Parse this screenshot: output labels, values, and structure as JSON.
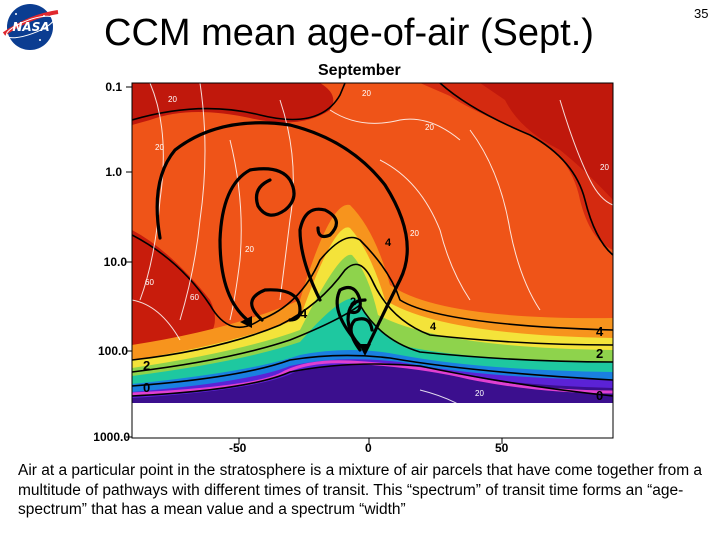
{
  "slide": {
    "title": "CCM mean age-of-air (Sept.)",
    "number": "35",
    "logo_text": "NASA",
    "logo_icon": "nasa-meatball-icon"
  },
  "plot": {
    "title": "September",
    "y_ticks": [
      "0.1",
      "1.0",
      "10.0",
      "100.0",
      "1000.0"
    ],
    "x_ticks": [
      "-50",
      "0",
      "50"
    ],
    "contour_labels_black": [
      "4",
      "2",
      "0",
      "4",
      "2",
      "0",
      "4",
      "2",
      "4"
    ],
    "contour_labels_white": [
      "20",
      "20",
      "20",
      "20",
      "20",
      "20",
      "20",
      "60",
      "60",
      "20"
    ]
  },
  "caption": "Air at a particular point in the stratosphere is a mixture of air parcels that have come together from a multitude of pathways with different times of transit.  This “spectrum” of transit time forms an “age-spectrum” that has a mean value and a spectrum “width”"
}
